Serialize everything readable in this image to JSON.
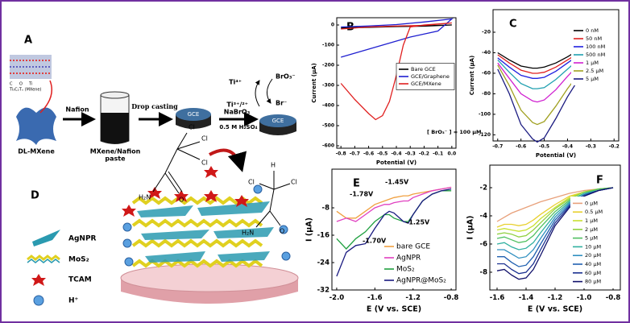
{
  "schematic_a": {
    "label": "A",
    "atoms_key": [
      "C",
      "O",
      "Ti"
    ],
    "formula": "Ti₃C₂Tₓ (MXene)",
    "material": "DL-MXene",
    "step1": "Nafion",
    "paste": [
      "MXene/Nafion",
      "paste"
    ],
    "step2": "Drop casting",
    "electrodes": [
      "GCE",
      "GCE"
    ],
    "reagent": "NaBrO₃",
    "electrolyte": "0.5 M H₂SO₄",
    "cycle": {
      "ox": "Ti⁴⁺",
      "red": "Ti³⁺/²⁺",
      "oxidant": "BrO₃⁻",
      "product": "Br⁻"
    }
  },
  "schematic_d": {
    "label": "D",
    "legend": [
      "AgNPR",
      "MoS₂",
      "TCAM",
      "H⁺"
    ],
    "tcam": [
      "Cl",
      "Cl",
      "Cl",
      "H₂N",
      "O"
    ],
    "product": [
      "H",
      "Cl",
      "Cl",
      "H₂N",
      "O"
    ]
  },
  "chart_data": [
    {
      "type": "line",
      "panel_label": "B",
      "x_label": "Potential (V)",
      "y_label": "Current (μA)",
      "xlim": [
        -0.83,
        0.03
      ],
      "ylim": [
        -612,
        36
      ],
      "xticks": [
        -0.8,
        -0.7,
        -0.6,
        -0.5,
        -0.4,
        -0.3,
        -0.2,
        -0.1,
        {
          "value": 0,
          "label": "0.0"
        }
      ],
      "yticks": [
        0,
        -100,
        -200,
        -300,
        -400,
        -500,
        -600
      ],
      "legend": "center right",
      "annotations": [
        "[ BrO₃⁻ ] = 100 μM"
      ],
      "series": [
        {
          "name": "Bare GCE",
          "color": "#000000",
          "x": [
            -0.8,
            -0.6,
            -0.4,
            -0.2,
            0,
            -0.2,
            -0.4,
            -0.6,
            -0.8
          ],
          "values": [
            -15,
            -12,
            -8,
            -4,
            0,
            -6,
            -8,
            -10,
            -15
          ]
        },
        {
          "name": "GCE/Graphene",
          "color": "#2020d0",
          "x": [
            -0.8,
            -0.6,
            -0.4,
            -0.2,
            0,
            -0.1,
            -0.2,
            -0.3,
            -0.4,
            -0.5,
            -0.6,
            -0.7,
            -0.8
          ],
          "values": [
            -10,
            -5,
            2,
            15,
            30,
            -30,
            -45,
            -60,
            -80,
            -100,
            -120,
            -140,
            -160
          ]
        },
        {
          "name": "GCE/MXene",
          "color": "#e02020",
          "x": [
            -0.8,
            -0.7,
            -0.6,
            -0.55,
            -0.5,
            -0.45,
            -0.4,
            -0.35,
            -0.3,
            -0.2,
            0,
            -0.2,
            -0.4,
            -0.6,
            -0.8
          ],
          "values": [
            -290,
            -370,
            -440,
            -470,
            -450,
            -380,
            -250,
            -100,
            -10,
            0,
            10,
            -2,
            -5,
            -10,
            -20
          ]
        }
      ]
    },
    {
      "type": "line",
      "panel_label": "C",
      "x_label": "Potential (V)",
      "y_label": "Current (μA)",
      "xlim": [
        -0.72,
        -0.18
      ],
      "ylim": [
        -126,
        2
      ],
      "xticks": [
        -0.7,
        -0.6,
        -0.5,
        -0.4,
        -0.3,
        -0.2
      ],
      "yticks": [
        -20,
        -40,
        -60,
        -80,
        -100,
        -120
      ],
      "legend": "upper right",
      "annotations": [],
      "x": [
        -0.7,
        -0.65,
        -0.6,
        -0.55,
        -0.53,
        -0.5,
        -0.45,
        -0.4,
        -0.35,
        -0.3,
        -0.25,
        -0.2
      ],
      "series": [
        {
          "name": "0 nM",
          "color": "#000000",
          "values": [
            -40,
            -47,
            -53,
            -55,
            -55,
            -54,
            -50,
            -44,
            -37,
            -32,
            -28,
            -25
          ]
        },
        {
          "name": "50 nM",
          "color": "#e02020",
          "values": [
            -42,
            -50,
            -57,
            -60,
            -60,
            -59,
            -54,
            -47,
            -40,
            -34,
            -30,
            -27
          ]
        },
        {
          "name": "100 nM",
          "color": "#2020e0",
          "values": [
            -45,
            -54,
            -62,
            -65,
            -65,
            -64,
            -58,
            -50,
            -42,
            -36,
            -31,
            -28
          ]
        },
        {
          "name": "500 nM",
          "color": "#20a0b0",
          "values": [
            -47,
            -59,
            -70,
            -75,
            -75,
            -74,
            -66,
            -56,
            -46,
            -39,
            -34,
            -30
          ]
        },
        {
          "name": "1 μM",
          "color": "#d020d0",
          "values": [
            -50,
            -65,
            -80,
            -87,
            -88,
            -86,
            -76,
            -63,
            -51,
            -43,
            -37,
            -33
          ]
        },
        {
          "name": "2.5 μM",
          "color": "#a0a020",
          "values": [
            -52,
            -72,
            -96,
            -108,
            -110,
            -107,
            -92,
            -75,
            -60,
            -49,
            -42,
            -36
          ]
        },
        {
          "name": "5 μM",
          "color": "#1a1a80",
          "values": [
            -56,
            -80,
            -110,
            -124,
            -127,
            -123,
            -104,
            -83,
            -65,
            -53,
            -45,
            -39
          ]
        }
      ]
    },
    {
      "type": "line",
      "panel_label": "E",
      "x_label": "E (V vs. SCE)",
      "y_label": "I (μA)",
      "xlim": [
        -2.05,
        -0.75
      ],
      "ylim": [
        -32,
        3.3
      ],
      "xticks": [
        {
          "value": -2,
          "label": "-2.0"
        },
        -1.6,
        -1.2,
        -0.8
      ],
      "yticks": [
        -8,
        -16,
        -24,
        -32
      ],
      "legend": "lower right",
      "annotations": [
        "-1.78V",
        "-1.45V",
        "-1.70V",
        "-1.25V"
      ],
      "x": [
        -2.0,
        -1.9,
        -1.8,
        -1.7,
        -1.6,
        -1.5,
        -1.45,
        -1.4,
        -1.3,
        -1.25,
        -1.2,
        -1.1,
        -1.0,
        -0.9,
        -0.8
      ],
      "series": [
        {
          "name": "bare GCE",
          "color": "#f0a040",
          "values": [
            -9,
            -11,
            -11,
            -9,
            -7,
            -6,
            -5.5,
            -5,
            -4.5,
            -4.5,
            -4,
            -3.5,
            -3,
            -2.5,
            -2
          ]
        },
        {
          "name": "AgNPR",
          "color": "#e040c0",
          "values": [
            -12,
            -11,
            -12,
            -10,
            -8,
            -7,
            -7,
            -6.5,
            -6,
            -6,
            -5,
            -4,
            -3,
            -2.5,
            -2
          ]
        },
        {
          "name": "MoS₂",
          "color": "#20a040",
          "values": [
            -17,
            -20,
            -17,
            -15,
            -12,
            -10,
            -10,
            -11,
            -12,
            -12,
            -10,
            -6,
            -4,
            -3,
            -3
          ]
        },
        {
          "name": "AgNPR@MoS₂",
          "color": "#1a1a80",
          "values": [
            -28,
            -21,
            -19,
            -18.5,
            -14,
            -10,
            -9,
            -9.5,
            -12,
            -12.5,
            -10,
            -6,
            -4,
            -3,
            -2.5
          ]
        }
      ]
    },
    {
      "type": "line",
      "panel_label": "F",
      "x_label": "E (V vs. SCE)",
      "y_label": "I (μA)",
      "xlim": [
        -1.65,
        -0.75
      ],
      "ylim": [
        -9.26,
        -0.4
      ],
      "xticks": [
        -1.6,
        -1.4,
        -1.2,
        {
          "value": -1,
          "label": "-1.0"
        },
        -0.8
      ],
      "yticks": [
        -2,
        -4,
        -6,
        -8
      ],
      "legend": "lower right",
      "annotations": [],
      "x": [
        -1.6,
        -1.55,
        -1.5,
        -1.45,
        -1.4,
        -1.35,
        -1.3,
        -1.2,
        -1.1,
        -1.0,
        -0.9,
        -0.8
      ],
      "series": [
        {
          "name": "0 μM",
          "color": "#e8a07a",
          "values": [
            -4.4,
            -4.1,
            -3.8,
            -3.6,
            -3.4,
            -3.2,
            -3.0,
            -2.7,
            -2.4,
            -2.2,
            -2.1,
            -2.0
          ]
        },
        {
          "name": "0.5 μM",
          "color": "#e8d030",
          "values": [
            -4.8,
            -4.6,
            -4.6,
            -4.7,
            -4.6,
            -4.3,
            -3.9,
            -3.2,
            -2.6,
            -2.3,
            -2.1,
            -2.0
          ]
        },
        {
          "name": "1 μM",
          "color": "#c8e030",
          "values": [
            -5.0,
            -4.9,
            -5.0,
            -5.1,
            -5.0,
            -4.7,
            -4.2,
            -3.4,
            -2.7,
            -2.3,
            -2.1,
            -2.0
          ]
        },
        {
          "name": "2 μM",
          "color": "#90d040",
          "values": [
            -5.3,
            -5.2,
            -5.3,
            -5.5,
            -5.4,
            -5.0,
            -4.5,
            -3.5,
            -2.8,
            -2.3,
            -2.1,
            -2.0
          ]
        },
        {
          "name": "5 μM",
          "color": "#50c060",
          "values": [
            -5.6,
            -5.5,
            -5.7,
            -5.9,
            -5.8,
            -5.4,
            -4.8,
            -3.7,
            -2.9,
            -2.4,
            -2.1,
            -2.0
          ]
        },
        {
          "name": "10 μM",
          "color": "#30b0a0",
          "values": [
            -6.0,
            -5.9,
            -6.2,
            -6.4,
            -6.3,
            -5.9,
            -5.2,
            -3.9,
            -3.0,
            -2.4,
            -2.2,
            -2.0
          ]
        },
        {
          "name": "20 μM",
          "color": "#3090c0",
          "values": [
            -6.4,
            -6.4,
            -6.7,
            -7.0,
            -6.9,
            -6.4,
            -5.6,
            -4.1,
            -3.1,
            -2.5,
            -2.2,
            -2.0
          ]
        },
        {
          "name": "40 μM",
          "color": "#2060b0",
          "values": [
            -6.9,
            -6.9,
            -7.3,
            -7.6,
            -7.5,
            -6.9,
            -6.0,
            -4.3,
            -3.2,
            -2.5,
            -2.2,
            -2.0
          ]
        },
        {
          "name": "60 μM",
          "color": "#1a3090",
          "values": [
            -7.4,
            -7.4,
            -7.8,
            -8.1,
            -8.0,
            -7.4,
            -6.4,
            -4.5,
            -3.3,
            -2.6,
            -2.2,
            -2.0
          ]
        },
        {
          "name": "80 μM",
          "color": "#10106a",
          "values": [
            -7.9,
            -7.8,
            -8.2,
            -8.5,
            -8.4,
            -7.8,
            -6.8,
            -4.7,
            -3.4,
            -2.6,
            -2.2,
            -2.0
          ]
        }
      ]
    }
  ]
}
